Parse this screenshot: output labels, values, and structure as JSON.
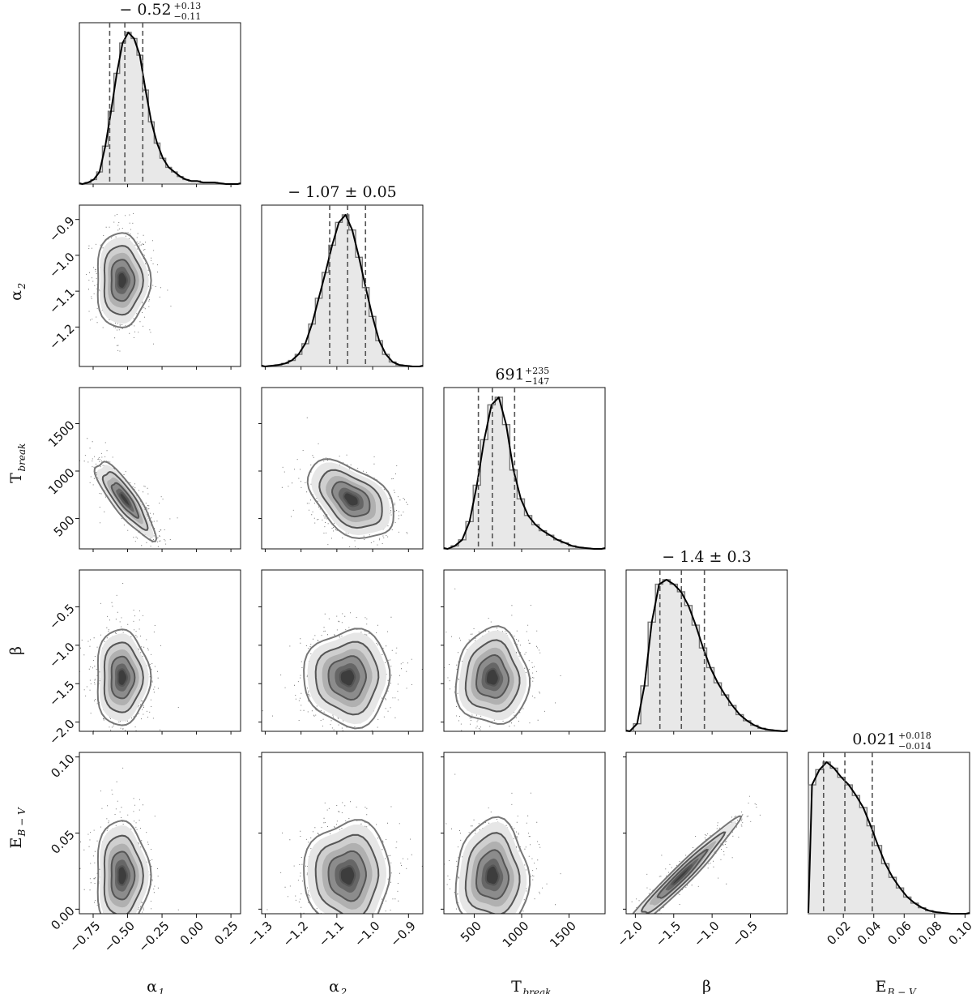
{
  "chart_data": {
    "type": "corner-plot",
    "parameters": [
      {
        "id": "alpha1",
        "label": "α",
        "sub": "1",
        "range": [
          -0.85,
          0.32
        ],
        "ticks": [
          -0.75,
          -0.5,
          -0.25,
          0.0,
          0.25
        ],
        "tick_labels": [
          "−0.75",
          "−0.50",
          "−0.25",
          "0.00",
          "0.25"
        ],
        "median": -0.52,
        "q_low": -0.63,
        "q_high": -0.39,
        "title": "− 0.52",
        "title_sup": "+0.13",
        "title_sub": "−0.11",
        "hist": [
          0,
          0.01,
          0.03,
          0.08,
          0.25,
          0.48,
          0.73,
          0.93,
          1.0,
          0.96,
          0.85,
          0.62,
          0.41,
          0.27,
          0.17,
          0.11,
          0.08,
          0.05,
          0.03,
          0.02,
          0.02,
          0.01,
          0.01,
          0.01,
          0.005,
          0,
          0,
          0
        ]
      },
      {
        "id": "alpha2",
        "label": "α",
        "sub": "2",
        "range": [
          -1.31,
          -0.86
        ],
        "ticks": [
          -1.3,
          -1.2,
          -1.1,
          -1.0,
          -0.9
        ],
        "tick_labels": [
          "−1.3",
          "−1.2",
          "−1.1",
          "−1.0",
          "−0.9"
        ],
        "median": -1.07,
        "q_low": -1.12,
        "q_high": -1.02,
        "title": "− 1.07 ± 0.05",
        "title_sup": "",
        "title_sub": "",
        "hist": [
          0,
          0.005,
          0.01,
          0.02,
          0.04,
          0.08,
          0.15,
          0.28,
          0.45,
          0.62,
          0.8,
          0.95,
          1.0,
          0.9,
          0.72,
          0.52,
          0.33,
          0.17,
          0.08,
          0.03,
          0.01,
          0.005,
          0,
          0
        ]
      },
      {
        "id": "tbreak",
        "label": "T",
        "sub": "break",
        "range": [
          180,
          1880
        ],
        "ticks": [
          500,
          1000,
          1500
        ],
        "tick_labels": [
          "500",
          "1000",
          "1500"
        ],
        "median": 691,
        "q_low": 544,
        "q_high": 926,
        "title": "691",
        "title_sup": "+235",
        "title_sub": "−147",
        "hist": [
          0,
          0.02,
          0.06,
          0.18,
          0.42,
          0.72,
          0.95,
          1.0,
          0.82,
          0.52,
          0.33,
          0.22,
          0.16,
          0.12,
          0.09,
          0.06,
          0.04,
          0.02,
          0.01,
          0.005,
          0,
          0
        ]
      },
      {
        "id": "beta",
        "label": "β",
        "sub": "",
        "range": [
          -2.12,
          -0.02
        ],
        "ticks": [
          -2.0,
          -1.5,
          -1.0,
          -0.5
        ],
        "tick_labels": [
          "−2.0",
          "−1.5",
          "−1.0",
          "−0.5"
        ],
        "median": -1.4,
        "q_low": -1.68,
        "q_high": -1.1,
        "title": "− 1.4 ± 0.3",
        "title_sup": "",
        "title_sub": "",
        "hist": [
          0,
          0.05,
          0.3,
          0.72,
          0.97,
          1.0,
          0.97,
          0.92,
          0.83,
          0.7,
          0.55,
          0.42,
          0.32,
          0.24,
          0.17,
          0.11,
          0.07,
          0.04,
          0.02,
          0.01,
          0.005,
          0
        ]
      },
      {
        "id": "ebv",
        "label": "E",
        "sub": "B − V",
        "range": [
          -0.003,
          0.103
        ],
        "ticks": [
          0.02,
          0.04,
          0.06,
          0.08,
          0.1
        ],
        "tick_labels": [
          "0.02",
          "0.04",
          "0.06",
          "0.08",
          "0.10"
        ],
        "y_ticks": [
          0.0,
          0.05,
          0.1
        ],
        "y_tick_labels": [
          "0.00",
          "0.05",
          "0.10"
        ],
        "median": 0.021,
        "q_low": 0.007,
        "q_high": 0.039,
        "title": "0.021",
        "title_sup": "+0.018",
        "title_sub": "−0.014",
        "hist": [
          0.85,
          0.95,
          1.0,
          0.96,
          0.9,
          0.85,
          0.78,
          0.7,
          0.58,
          0.45,
          0.33,
          0.24,
          0.17,
          0.11,
          0.07,
          0.04,
          0.02,
          0.01,
          0.005,
          0,
          0,
          0
        ]
      }
    ],
    "y_tick_overrides": {
      "alpha2": {
        "ticks": [
          -1.2,
          -1.1,
          -1.0,
          -0.9
        ],
        "labels": [
          "−1.2",
          "−1.1",
          "−1.0",
          "−0.9"
        ]
      },
      "tbreak": {
        "ticks": [
          500,
          1000,
          1500
        ],
        "labels": [
          "500",
          "1000",
          "1500"
        ]
      },
      "beta": {
        "ticks": [
          -2.0,
          -1.5,
          -1.0,
          -0.5
        ],
        "labels": [
          "−2.0",
          "−1.5",
          "−1.0",
          "−0.5"
        ]
      },
      "ebv": {
        "ticks": [
          0.0,
          0.05,
          0.1
        ],
        "labels": [
          "0.00",
          "0.05",
          "0.10"
        ]
      }
    },
    "joint": [
      {
        "row": 1,
        "col": 0,
        "cx": -0.54,
        "cy": -1.07,
        "sx": 0.08,
        "sy": 0.055,
        "rho": 0.0
      },
      {
        "row": 2,
        "col": 0,
        "cx": -0.52,
        "cy": 700,
        "sx": 0.09,
        "sy": 170,
        "rho": -0.85
      },
      {
        "row": 2,
        "col": 1,
        "cx": -1.06,
        "cy": 700,
        "sx": 0.05,
        "sy": 170,
        "rho": -0.45
      },
      {
        "row": 3,
        "col": 0,
        "cx": -0.54,
        "cy": -1.42,
        "sx": 0.08,
        "sy": 0.26,
        "rho": 0.0
      },
      {
        "row": 3,
        "col": 1,
        "cx": -1.07,
        "cy": -1.42,
        "sx": 0.05,
        "sy": 0.26,
        "rho": 0.0
      },
      {
        "row": 3,
        "col": 2,
        "cx": 690,
        "cy": -1.42,
        "sx": 160,
        "sy": 0.26,
        "rho": 0.0
      },
      {
        "row": 4,
        "col": 0,
        "cx": -0.54,
        "cy": 0.022,
        "sx": 0.08,
        "sy": 0.015,
        "rho": 0.0
      },
      {
        "row": 4,
        "col": 1,
        "cx": -1.07,
        "cy": 0.022,
        "sx": 0.05,
        "sy": 0.015,
        "rho": 0.0
      },
      {
        "row": 4,
        "col": 2,
        "cx": 690,
        "cy": 0.022,
        "sx": 160,
        "sy": 0.015,
        "rho": 0.0
      },
      {
        "row": 4,
        "col": 3,
        "cx": -1.4,
        "cy": 0.022,
        "sx": 0.3,
        "sy": 0.015,
        "rho": 0.97
      }
    ]
  }
}
